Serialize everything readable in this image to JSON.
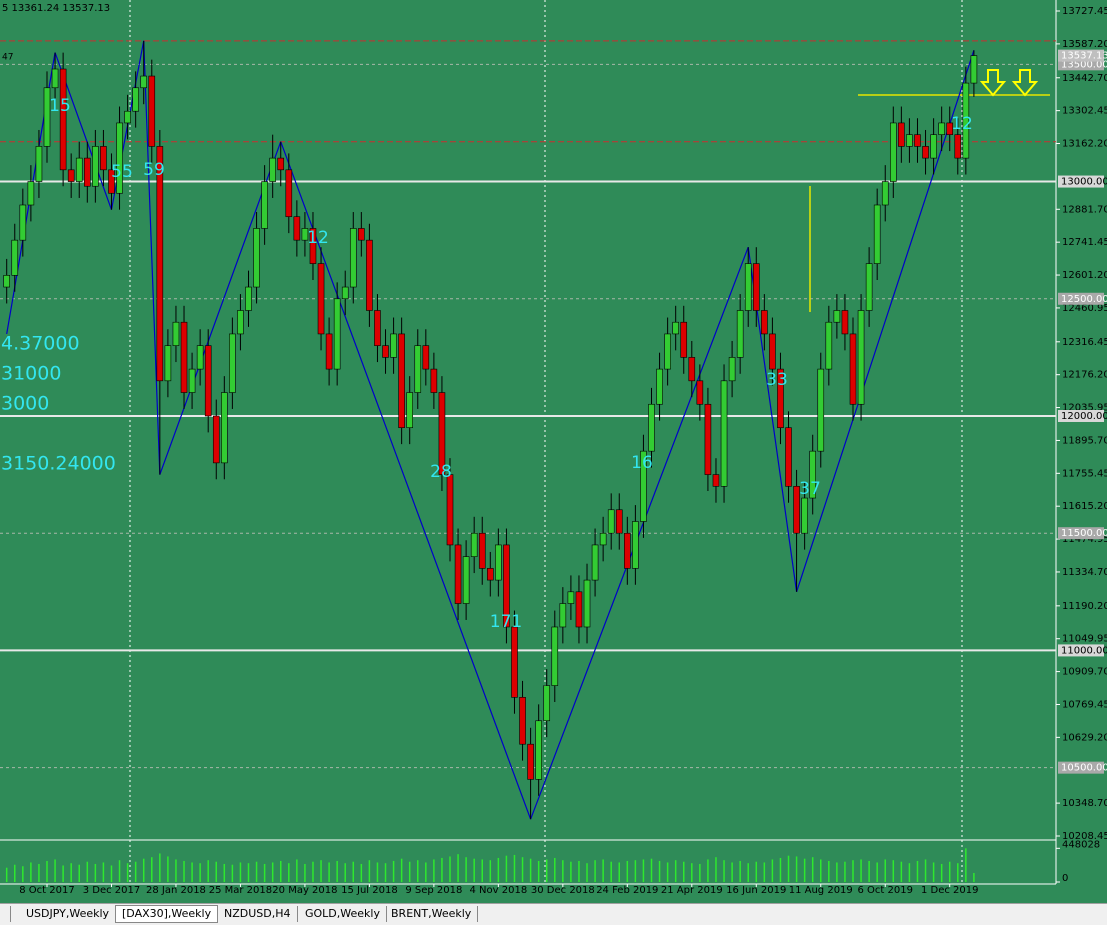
{
  "chart_data": {
    "type": "candlestick",
    "info": "5 13361.24 13537.13",
    "side_label": "47",
    "categories": [
      null,
      null,
      null,
      null,
      null,
      "8 Oct 2017",
      null,
      null,
      null,
      null,
      null,
      null,
      null,
      "3 Dec 2017",
      null,
      null,
      null,
      null,
      null,
      null,
      null,
      "28 Jan 2018",
      null,
      null,
      null,
      null,
      null,
      null,
      null,
      "25 Mar 2018",
      null,
      null,
      null,
      null,
      null,
      null,
      null,
      "20 May 2018",
      null,
      null,
      null,
      null,
      null,
      null,
      null,
      "15 Jul 2018",
      null,
      null,
      null,
      null,
      null,
      null,
      null,
      "9 Sep 2018",
      null,
      null,
      null,
      null,
      null,
      null,
      null,
      "4 Nov 2018",
      null,
      null,
      null,
      null,
      null,
      null,
      null,
      "30 Dec 2018",
      null,
      null,
      null,
      null,
      null,
      null,
      null,
      "24 Feb 2019",
      null,
      null,
      null,
      null,
      null,
      null,
      null,
      "21 Apr 2019",
      null,
      null,
      null,
      null,
      null,
      null,
      null,
      "16 Jun 2019",
      null,
      null,
      null,
      null,
      null,
      null,
      null,
      "11 Aug 2019",
      null,
      null,
      null,
      null,
      null,
      null,
      null,
      "6 Oct 2019",
      null,
      null,
      null,
      null,
      null,
      null,
      null,
      "1 Dec 2019",
      null,
      null,
      null
    ],
    "open": [
      12550,
      12600,
      12750,
      12900,
      13000,
      13150,
      13400,
      13480,
      13050,
      13000,
      13100,
      12980,
      13150,
      13050,
      12950,
      13250,
      13300,
      13400,
      13450,
      13150,
      12150,
      12300,
      12400,
      12100,
      12200,
      12300,
      12000,
      11800,
      12100,
      12350,
      12450,
      12550,
      12800,
      13000,
      13100,
      13050,
      12850,
      12750,
      12800,
      12650,
      12350,
      12200,
      12500,
      12550,
      12800,
      12750,
      12450,
      12300,
      12250,
      12350,
      11950,
      12100,
      12300,
      12200,
      12100,
      11750,
      11450,
      11200,
      11400,
      11500,
      11350,
      11300,
      11450,
      11100,
      10800,
      10600,
      10450,
      10700,
      10850,
      11100,
      11200,
      11250,
      11100,
      11300,
      11450,
      11500,
      11600,
      11500,
      11350,
      11550,
      11850,
      12050,
      12200,
      12350,
      12400,
      12250,
      12150,
      12050,
      11750,
      11700,
      12150,
      12250,
      12450,
      12650,
      12450,
      12350,
      12200,
      11950,
      11700,
      11500,
      11650,
      11850,
      12200,
      12400,
      12450,
      12350,
      12050,
      12450,
      12650,
      12900,
      13000,
      13250,
      13150,
      13200,
      13150,
      13100,
      13200,
      13250,
      13200,
      13100,
      13420
    ],
    "high": [
      12670,
      12820,
      12970,
      13070,
      13220,
      13470,
      13550,
      13550,
      13120,
      13170,
      13170,
      13220,
      13220,
      13120,
      13320,
      13370,
      13470,
      13600,
      13520,
      13220,
      12370,
      12470,
      12470,
      12270,
      12370,
      12370,
      12070,
      12170,
      12420,
      12520,
      12620,
      12870,
      13070,
      13200,
      13170,
      13120,
      12920,
      12870,
      12870,
      12720,
      12420,
      12570,
      12620,
      12870,
      12870,
      12820,
      12520,
      12370,
      12420,
      12420,
      12170,
      12370,
      12370,
      12270,
      12170,
      11820,
      11520,
      11470,
      11570,
      11570,
      11420,
      11520,
      11520,
      11170,
      10870,
      10670,
      10770,
      10920,
      11170,
      11270,
      11320,
      11320,
      11370,
      11520,
      11570,
      11670,
      11670,
      11570,
      11620,
      11920,
      12120,
      12270,
      12420,
      12470,
      12470,
      12320,
      12220,
      12120,
      11820,
      12220,
      12320,
      12520,
      12720,
      12720,
      12520,
      12420,
      12270,
      12020,
      11770,
      11720,
      11920,
      12270,
      12470,
      12520,
      12520,
      12420,
      12520,
      12720,
      12970,
      13070,
      13320,
      13320,
      13270,
      13270,
      13220,
      13270,
      13320,
      13320,
      13270,
      13490,
      13560
    ],
    "low": [
      12480,
      12530,
      12680,
      12830,
      12930,
      13080,
      13330,
      12980,
      12930,
      12930,
      12910,
      12910,
      12980,
      12880,
      12880,
      13180,
      13230,
      13330,
      13080,
      11750,
      12080,
      12230,
      12030,
      12030,
      12130,
      11930,
      11730,
      11730,
      12030,
      12280,
      12380,
      12480,
      12730,
      12930,
      12980,
      12780,
      12680,
      12680,
      12580,
      12280,
      12130,
      12130,
      12430,
      12480,
      12680,
      12380,
      12230,
      12180,
      12180,
      11880,
      11880,
      12030,
      12130,
      12030,
      11680,
      11380,
      11130,
      11130,
      11330,
      11280,
      11230,
      11230,
      11030,
      10730,
      10530,
      10280,
      10380,
      10630,
      10780,
      11030,
      11130,
      11030,
      11030,
      11230,
      11380,
      11430,
      11430,
      11280,
      11280,
      11480,
      11780,
      11980,
      12130,
      12280,
      12180,
      12080,
      11980,
      11680,
      11630,
      11630,
      12080,
      12180,
      12380,
      12380,
      12280,
      12130,
      11880,
      11630,
      11250,
      11430,
      11580,
      11780,
      12130,
      12330,
      12280,
      11980,
      11980,
      12380,
      12580,
      12830,
      12930,
      13080,
      13080,
      13080,
      13030,
      13030,
      13130,
      13130,
      13030,
      13030,
      13361.24
    ],
    "close": [
      12600,
      12750,
      12900,
      13000,
      13150,
      13400,
      13480,
      13050,
      13000,
      13100,
      12980,
      13150,
      13050,
      12950,
      13250,
      13300,
      13400,
      13450,
      13150,
      12150,
      12300,
      12400,
      12100,
      12200,
      12300,
      12000,
      11800,
      12100,
      12350,
      12450,
      12550,
      12800,
      13000,
      13100,
      13050,
      12850,
      12750,
      12800,
      12650,
      12350,
      12200,
      12500,
      12550,
      12800,
      12750,
      12450,
      12300,
      12250,
      12350,
      11950,
      12100,
      12300,
      12200,
      12100,
      11750,
      11450,
      11200,
      11400,
      11500,
      11350,
      11300,
      11450,
      11100,
      10800,
      10600,
      10450,
      10700,
      10850,
      11100,
      11200,
      11250,
      11100,
      11300,
      11450,
      11500,
      11600,
      11500,
      11350,
      11550,
      11850,
      12050,
      12200,
      12350,
      12400,
      12250,
      12150,
      12050,
      11750,
      11700,
      12150,
      12250,
      12450,
      12650,
      12450,
      12350,
      12200,
      11950,
      11700,
      11500,
      11650,
      11850,
      12200,
      12400,
      12450,
      12350,
      12050,
      12450,
      12650,
      12900,
      13000,
      13250,
      13150,
      13200,
      13150,
      13100,
      13200,
      13250,
      13200,
      13100,
      13420,
      13537.13
    ],
    "volume": [
      190000,
      230000,
      210000,
      260000,
      240000,
      280000,
      300000,
      220000,
      250000,
      230000,
      270000,
      240000,
      260000,
      220000,
      290000,
      250000,
      270000,
      310000,
      330000,
      380000,
      340000,
      300000,
      280000,
      260000,
      250000,
      290000,
      270000,
      240000,
      230000,
      260000,
      250000,
      270000,
      240000,
      260000,
      280000,
      250000,
      300000,
      240000,
      270000,
      290000,
      260000,
      280000,
      250000,
      270000,
      240000,
      290000,
      260000,
      250000,
      280000,
      310000,
      270000,
      290000,
      260000,
      300000,
      320000,
      340000,
      370000,
      330000,
      310000,
      300000,
      290000,
      320000,
      350000,
      360000,
      330000,
      310000,
      280000,
      300000,
      320000,
      290000,
      270000,
      280000,
      250000,
      290000,
      300000,
      270000,
      260000,
      280000,
      290000,
      300000,
      310000,
      280000,
      260000,
      290000,
      270000,
      250000,
      240000,
      300000,
      330000,
      290000,
      260000,
      280000,
      250000,
      270000,
      260000,
      300000,
      320000,
      350000,
      340000,
      310000,
      330000,
      300000,
      280000,
      260000,
      270000,
      290000,
      300000,
      280000,
      260000,
      300000,
      290000,
      270000,
      250000,
      280000,
      300000,
      260000,
      240000,
      270000,
      250000,
      448028,
      120000
    ],
    "zigzag": [
      12350,
      null,
      null,
      null,
      null,
      null,
      13550,
      null,
      null,
      null,
      null,
      null,
      null,
      12880,
      null,
      null,
      null,
      13600,
      null,
      11750,
      null,
      null,
      null,
      null,
      null,
      null,
      null,
      null,
      null,
      null,
      null,
      null,
      null,
      null,
      13170,
      null,
      null,
      null,
      null,
      null,
      null,
      null,
      null,
      null,
      null,
      null,
      null,
      null,
      null,
      null,
      null,
      null,
      null,
      null,
      null,
      null,
      null,
      null,
      null,
      null,
      null,
      null,
      null,
      null,
      null,
      10280,
      null,
      null,
      null,
      null,
      null,
      null,
      null,
      null,
      null,
      null,
      null,
      null,
      null,
      null,
      null,
      null,
      null,
      null,
      null,
      null,
      null,
      null,
      null,
      null,
      null,
      null,
      12720,
      null,
      null,
      null,
      null,
      null,
      11250,
      null,
      null,
      null,
      null,
      null,
      null,
      null,
      null,
      null,
      null,
      null,
      null,
      null,
      null,
      null,
      null,
      null,
      null,
      null,
      null,
      null,
      13560
    ],
    "zigzag_color": "#0000c8",
    "up_color": "#33cc33",
    "down_color": "#dd0000",
    "ylim": [
      10199.9,
      13774.4
    ],
    "yticks": [
      13727.45,
      {
        "value": 13587.2,
        "label": "13587.20"
      },
      {
        "value": 13442.7,
        "label": "13442.70"
      },
      13302.45,
      {
        "value": 13162.2,
        "label": "13162.20"
      },
      {
        "value": 12881.7,
        "label": "12881.70"
      },
      12741.45,
      {
        "value": 12601.2,
        "label": "12601.20"
      },
      12460.95,
      12316.45,
      {
        "value": 12176.2,
        "label": "12176.20"
      },
      12035.95,
      {
        "value": 11895.7,
        "label": "11895.70"
      },
      11755.45,
      {
        "value": 11615.2,
        "label": "11615.20"
      },
      11474.95,
      {
        "value": 11334.7,
        "label": "11334.70"
      },
      {
        "value": 11190.2,
        "label": "11190.20"
      },
      11049.95,
      {
        "value": 10909.7,
        "label": "10909.70"
      },
      10769.45,
      {
        "value": 10629.2,
        "label": "10629.20"
      },
      {
        "value": 10348.7,
        "label": "10348.70"
      },
      10208.45
    ],
    "levels": {
      "values": [
        13000,
        12000,
        11000
      ],
      "value_labels": [
        "13000.00",
        "12000.00",
        "11000.00"
      ]
    },
    "grid_levels": {
      "values": [
        13500,
        12500,
        11500,
        10500
      ],
      "value_labels": [
        "13500.00",
        "12500.00",
        "11500.00",
        "10500.00"
      ]
    },
    "red_lines": [
      13600,
      13170
    ],
    "last_price": 13537.13,
    "vol_ylim": [
      0,
      532000
    ],
    "vol_ticks": [
      0,
      448028
    ],
    "annotations": [
      "15",
      "55",
      "59",
      "12",
      "28",
      "171",
      "16",
      "33",
      "37",
      "12"
    ],
    "left_labels": [
      "4.37000",
      "31000",
      "3000",
      "3150.24000"
    ]
  },
  "tabs": [
    "USDJPY,Weekly",
    "[DAX30],Weekly",
    "NZDUSD,H4",
    "GOLD,Weekly",
    "BRENT,Weekly"
  ]
}
